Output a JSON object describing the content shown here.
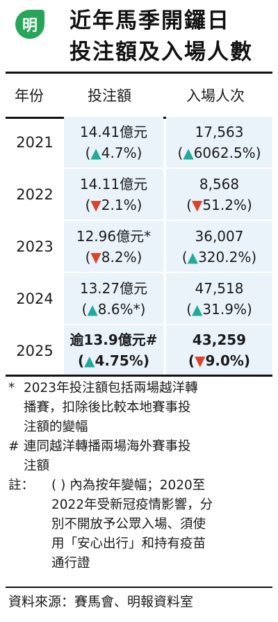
{
  "logo": "明",
  "title": {
    "line1": "近年馬季開鑼日",
    "line2": "投注額及入場人數"
  },
  "table": {
    "headers": [
      "年份",
      "投注額",
      "入場人次"
    ],
    "rows": [
      {
        "year": "2021",
        "bet": "14.41億元",
        "bet_arrow": "▲",
        "bet_change": "4.7%",
        "att": "17,563",
        "att_arrow": "▲",
        "att_change": "6062.5%"
      },
      {
        "year": "2022",
        "bet": "14.11億元",
        "bet_arrow": "▼",
        "bet_change": "2.1%",
        "att": "8,568",
        "att_arrow": "▼",
        "att_change": "51.2%"
      },
      {
        "year": "2023",
        "bet": "12.96億元*",
        "bet_arrow": "▼",
        "bet_change": "8.2%",
        "att": "36,007",
        "att_arrow": "▲",
        "att_change": "320.2%"
      },
      {
        "year": "2024",
        "bet": "13.27億元",
        "bet_arrow": "▲",
        "bet_change": "8.6%*",
        "att": "47,518",
        "att_arrow": "▲",
        "att_change": "31.9%"
      },
      {
        "year": "2025",
        "bet": "逾13.9億元#",
        "bet_arrow": "▲",
        "bet_change": "4.75%",
        "att": "43,259",
        "att_arrow": "▼",
        "att_change": "9.0%"
      }
    ]
  },
  "notes": {
    "star_mark": "*",
    "star_lines": [
      "2023年投注額包括兩場越洋轉",
      "播賽，扣除後比較本地賽事投",
      "注額的變幅"
    ],
    "hash_mark": "#",
    "hash_lines": [
      "連同越洋轉播兩場海外賽事投",
      "注額"
    ],
    "note_mark": "註：",
    "note_lines": [
      "( ) 內為按年變幅；2020至",
      "2022年受新冠疫情影響，分",
      "別不開放予公眾入場、須使",
      "用「安心出行」和持有疫苗",
      "通行證"
    ]
  },
  "source": "資料來源：賽馬會、明報資料室",
  "colors": {
    "logo_green": "#27a65a",
    "up_arrow": "#23a99a",
    "down_arrow": "#d9442d",
    "cell_bg": "#eaf3fa"
  }
}
